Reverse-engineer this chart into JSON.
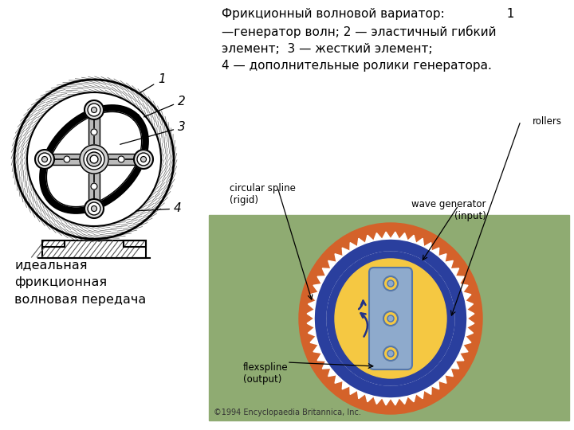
{
  "background_color": "#ffffff",
  "title_text": "Фрикционный волновой вариатор:                1\n—генератор волн; 2 — эластичный гибкий\nэлемент;  3 — жесткий элемент;\n4 — дополнительные ролики генератора.",
  "left_label": "идеальная\nфрикционная\nволновая передача",
  "image_bg": "#8fab72",
  "outer_ring_color": "#d4622a",
  "blue_ring_color": "#2a3f9e",
  "inner_yellow_color": "#f5c842",
  "flexspline_color": "#8eaacc",
  "copyright_text": "©1994 Encyclopaedia Britannica, Inc.",
  "labels": {
    "circular_spline": "circular spline\n(rigid)",
    "wave_generator": "wave generator\n(input)",
    "rollers": "rollers",
    "flexspline": "flexspline\n(output)"
  }
}
